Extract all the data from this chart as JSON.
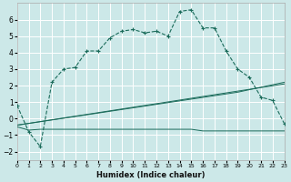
{
  "xlabel": "Humidex (Indice chaleur)",
  "background_color": "#cce8e8",
  "grid_color": "#ffffff",
  "line_color": "#1a6b5a",
  "xlim": [
    0,
    23
  ],
  "ylim": [
    -2.5,
    7.0
  ],
  "xticks": [
    0,
    1,
    2,
    3,
    4,
    5,
    6,
    7,
    8,
    9,
    10,
    11,
    12,
    13,
    14,
    15,
    16,
    17,
    18,
    19,
    20,
    21,
    22,
    23
  ],
  "yticks": [
    -2,
    -1,
    0,
    1,
    2,
    3,
    4,
    5,
    6
  ],
  "curve1_x": [
    0,
    1,
    2,
    3,
    4,
    5,
    6,
    7,
    8,
    9,
    10,
    11,
    12,
    13,
    14,
    15,
    16,
    17,
    18,
    19,
    20,
    21,
    22,
    23
  ],
  "curve1_y": [
    0.8,
    -0.8,
    -1.7,
    2.2,
    3.0,
    3.1,
    4.1,
    4.1,
    4.9,
    5.3,
    5.4,
    5.2,
    5.3,
    5.0,
    6.5,
    6.6,
    5.5,
    5.5,
    4.1,
    3.0,
    2.5,
    1.3,
    1.1,
    -0.3
  ],
  "curve2_x": [
    0,
    1,
    2,
    3,
    4,
    5,
    6,
    7,
    8,
    9,
    10,
    11,
    12,
    13,
    14,
    15,
    16,
    17,
    18,
    19,
    20,
    21,
    22,
    23
  ],
  "curve2_y": [
    -0.5,
    -0.7,
    -0.65,
    -0.65,
    -0.65,
    -0.65,
    -0.65,
    -0.65,
    -0.65,
    -0.65,
    -0.65,
    -0.65,
    -0.65,
    -0.65,
    -0.65,
    -0.65,
    -0.75,
    -0.75,
    -0.75,
    -0.75,
    -0.75,
    -0.75,
    -0.75,
    -0.75
  ],
  "curve3_x": [
    0,
    23
  ],
  "curve3_y": [
    -0.4,
    2.1
  ],
  "curve4_x": [
    0,
    19,
    23
  ],
  "curve4_y": [
    -0.4,
    1.6,
    2.2
  ]
}
